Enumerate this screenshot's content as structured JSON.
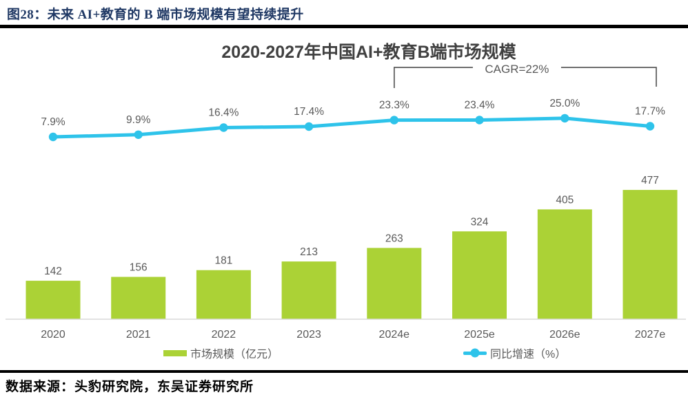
{
  "header": {
    "caption": "图28：未来 AI+教育的 B 端市场规模有望持续提升"
  },
  "footer": {
    "source": "数据来源：头豹研究院，东吴证券研究所"
  },
  "chart_data": {
    "type": "bar",
    "combo": "bar+line",
    "title": "2020-2027年中国AI+教育B端市场规模",
    "categories": [
      "2020",
      "2021",
      "2022",
      "2023",
      "2024e",
      "2025e",
      "2026e",
      "2027e"
    ],
    "series": [
      {
        "name": "市场规模（亿元）",
        "type": "bar",
        "values": [
          142,
          156,
          181,
          213,
          263,
          324,
          405,
          477
        ],
        "color": "#ABD236"
      },
      {
        "name": "同比增速（%）",
        "type": "line",
        "values": [
          7.9,
          9.9,
          16.4,
          17.4,
          23.3,
          23.4,
          25.0,
          17.7
        ],
        "unit": "%",
        "color": "#2EC3EA"
      }
    ],
    "annotation": {
      "text": "CAGR=22%",
      "from_category": "2024e",
      "to_category": "2027e"
    },
    "legend_position": "bottom",
    "grid": false,
    "ylim_left": [
      0,
      500
    ],
    "colors": {
      "label_gray": "#595959",
      "title_gray": "#404040",
      "axis_line": "#D9D9D9",
      "caption_navy": "#1F3864",
      "rule_black": "#000000"
    }
  }
}
